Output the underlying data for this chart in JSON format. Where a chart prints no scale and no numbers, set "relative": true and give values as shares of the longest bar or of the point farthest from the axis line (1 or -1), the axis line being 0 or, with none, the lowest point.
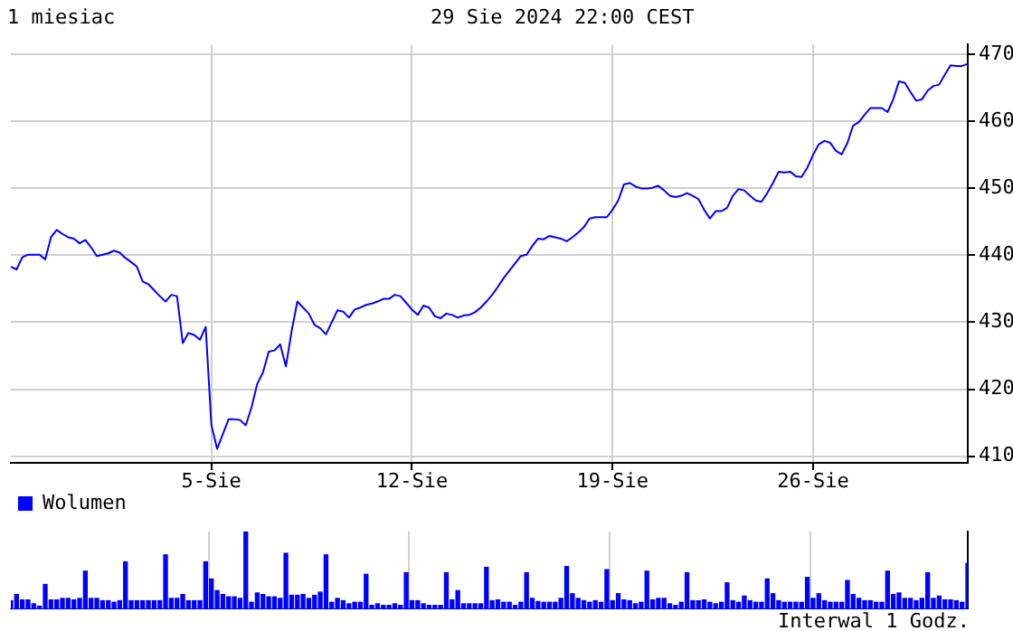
{
  "chart_data": [
    {
      "type": "line",
      "title": "29 Sie 2024 22:00 CEST",
      "subtitle": "1 miesiac",
      "annotations": [
        "Interwal 1 Godz."
      ],
      "categories": [
        null,
        null,
        null,
        null,
        null,
        null,
        null,
        null,
        null,
        null,
        null,
        null,
        null,
        null,
        null,
        null,
        null,
        null,
        null,
        null,
        null,
        null,
        null,
        null,
        null,
        null,
        null,
        null,
        null,
        null,
        null,
        null,
        null,
        null,
        null,
        "5-Sie",
        null,
        null,
        null,
        null,
        null,
        null,
        null,
        null,
        null,
        null,
        null,
        null,
        null,
        null,
        null,
        null,
        null,
        null,
        null,
        null,
        null,
        null,
        null,
        null,
        null,
        null,
        null,
        null,
        null,
        null,
        null,
        null,
        null,
        null,
        "12-Sie",
        null,
        null,
        null,
        null,
        null,
        null,
        null,
        null,
        null,
        null,
        null,
        null,
        null,
        null,
        null,
        null,
        null,
        null,
        null,
        null,
        null,
        null,
        null,
        null,
        null,
        null,
        null,
        null,
        null,
        null,
        null,
        null,
        null,
        null,
        "19-Sie",
        null,
        null,
        null,
        null,
        null,
        null,
        null,
        null,
        null,
        null,
        null,
        null,
        null,
        null,
        null,
        null,
        null,
        null,
        null,
        null,
        null,
        null,
        null,
        null,
        null,
        null,
        null,
        null,
        null,
        null,
        null,
        null,
        null,
        null,
        "26-Sie",
        null,
        null,
        null,
        null,
        null,
        null,
        null,
        null,
        null,
        null,
        null,
        null,
        null,
        null,
        null,
        null,
        null,
        null,
        null,
        null,
        null,
        null,
        null,
        null,
        null,
        null,
        null
      ],
      "series": [
        {
          "color": "#0000ff",
          "values": [
            438.3,
            437.9,
            439.7,
            440.1,
            440.1,
            440.1,
            439.4,
            442.7,
            443.8,
            443.2,
            442.7,
            442.5,
            441.8,
            442.3,
            441.2,
            439.9,
            440.1,
            440.3,
            440.7,
            440.4,
            439.6,
            439.0,
            438.3,
            436.1,
            435.7,
            434.8,
            433.9,
            433.1,
            434.1,
            433.9,
            426.9,
            428.4,
            428.1,
            427.4,
            429.3,
            414.6,
            411.1,
            413.3,
            415.5,
            415.5,
            415.4,
            414.6,
            417.3,
            420.8,
            422.5,
            425.6,
            425.8,
            426.7,
            423.4,
            428.7,
            433.1,
            432.2,
            431.3,
            429.6,
            429.1,
            428.2,
            430.0,
            431.8,
            431.6,
            430.7,
            431.9,
            432.2,
            432.6,
            432.8,
            433.1,
            433.5,
            433.5,
            434.1,
            433.9,
            432.9,
            431.9,
            431.1,
            432.5,
            432.2,
            430.9,
            430.6,
            431.3,
            431.1,
            430.7,
            431.0,
            431.1,
            431.5,
            432.2,
            433.1,
            434.1,
            435.3,
            436.6,
            437.7,
            438.8,
            439.9,
            440.1,
            441.4,
            442.5,
            442.4,
            442.9,
            442.7,
            442.5,
            442.1,
            442.7,
            443.4,
            444.2,
            445.5,
            445.7,
            445.7,
            445.7,
            446.8,
            448.2,
            450.6,
            450.8,
            450.3,
            450.0,
            450.0,
            450.1,
            450.4,
            449.7,
            448.9,
            448.7,
            448.9,
            449.3,
            448.9,
            448.4,
            446.8,
            445.5,
            446.6,
            446.6,
            447.1,
            448.9,
            449.9,
            449.7,
            448.9,
            448.2,
            448.0,
            449.3,
            450.8,
            452.5,
            452.4,
            452.5,
            451.8,
            451.7,
            453.1,
            455.0,
            456.6,
            457.1,
            456.8,
            455.6,
            455.1,
            456.8,
            459.4,
            459.9,
            461.0,
            462.0,
            462.0,
            462.0,
            461.4,
            463.3,
            466.0,
            465.8,
            464.4,
            463.1,
            463.3,
            464.6,
            465.3,
            465.5,
            467.0,
            468.4,
            468.3,
            468.3,
            468.6
          ]
        }
      ],
      "ylim": [
        409,
        471.5
      ],
      "yticks": [
        410,
        420,
        430,
        440,
        450,
        460,
        470
      ],
      "grid": true,
      "marker": "none"
    },
    {
      "type": "bar",
      "relative": true,
      "legend": "top left",
      "tick_labels": false,
      "grid": "x",
      "categories": [
        null,
        null,
        null,
        null,
        null,
        null,
        null,
        null,
        null,
        null,
        null,
        null,
        null,
        null,
        null,
        null,
        null,
        null,
        null,
        null,
        null,
        null,
        null,
        null,
        null,
        null,
        null,
        null,
        null,
        null,
        null,
        null,
        null,
        null,
        null,
        null,
        null,
        null,
        null,
        null,
        null,
        null,
        null,
        null,
        null,
        null,
        null,
        null,
        null,
        null,
        null,
        null,
        null,
        null,
        null,
        null,
        null,
        null,
        null,
        null,
        null,
        null,
        null,
        null,
        null,
        null,
        null,
        null,
        null,
        null,
        null,
        null,
        null,
        null,
        null,
        null,
        null,
        null,
        null,
        null,
        null,
        null,
        null,
        null,
        null,
        null,
        null,
        null,
        null,
        null,
        null,
        null,
        null,
        null,
        null,
        null,
        null,
        null,
        null,
        null,
        null,
        null,
        null,
        null,
        null,
        null,
        null,
        null,
        null,
        null,
        null,
        null,
        null,
        null,
        null,
        null,
        null,
        null,
        null,
        null,
        null,
        null,
        null,
        null,
        null,
        null,
        null,
        null,
        null,
        null,
        null,
        null,
        null,
        null,
        null,
        null,
        null,
        null,
        null,
        null,
        null,
        null,
        null,
        null,
        null,
        null,
        null,
        null,
        null,
        null,
        null,
        null,
        null,
        null,
        null,
        null,
        null,
        null,
        null,
        null,
        null,
        null,
        null,
        null,
        null,
        null,
        null,
        null
      ],
      "series": [
        {
          "name": "Wolumen",
          "color": "#0000ff",
          "values": [
            0.11,
            0.19,
            0.12,
            0.12,
            0.07,
            0.04,
            0.32,
            0.12,
            0.12,
            0.14,
            0.14,
            0.12,
            0.14,
            0.49,
            0.14,
            0.14,
            0.11,
            0.11,
            0.09,
            0.11,
            0.61,
            0.11,
            0.11,
            0.11,
            0.11,
            0.11,
            0.11,
            0.7,
            0.14,
            0.14,
            0.19,
            0.11,
            0.11,
            0.11,
            0.61,
            0.39,
            0.24,
            0.19,
            0.16,
            0.16,
            0.14,
            1,
            0.09,
            0.21,
            0.19,
            0.16,
            0.16,
            0.14,
            0.72,
            0.18,
            0.18,
            0.19,
            0.14,
            0.18,
            0.22,
            0.7,
            0.09,
            0.14,
            0.11,
            0.07,
            0.09,
            0.09,
            0.45,
            0.05,
            0.07,
            0.05,
            0.05,
            0.07,
            0.05,
            0.47,
            0.11,
            0.11,
            0.07,
            0.05,
            0.05,
            0.05,
            0.47,
            0.12,
            0.24,
            0.07,
            0.07,
            0.07,
            0.07,
            0.54,
            0.11,
            0.12,
            0.09,
            0.09,
            0.05,
            0.09,
            0.47,
            0.14,
            0.1,
            0.09,
            0.09,
            0.09,
            0.14,
            0.55,
            0.2,
            0.14,
            0.11,
            0.09,
            0.11,
            0.09,
            0.51,
            0.11,
            0.2,
            0.12,
            0.11,
            0.07,
            0.09,
            0.49,
            0.12,
            0.14,
            0.14,
            0.07,
            0.05,
            0.09,
            0.47,
            0.11,
            0.11,
            0.12,
            0.09,
            0.07,
            0.09,
            0.34,
            0.11,
            0.09,
            0.17,
            0.11,
            0.09,
            0.09,
            0.39,
            0.2,
            0.11,
            0.09,
            0.09,
            0.09,
            0.09,
            0.41,
            0.14,
            0.2,
            0.11,
            0.09,
            0.09,
            0.09,
            0.37,
            0.19,
            0.14,
            0.11,
            0.11,
            0.09,
            0.09,
            0.49,
            0.19,
            0.21,
            0.14,
            0.14,
            0.11,
            0.14,
            0.47,
            0.14,
            0.17,
            0.12,
            0.12,
            0.11,
            0.09,
            0.59
          ]
        }
      ]
    }
  ]
}
